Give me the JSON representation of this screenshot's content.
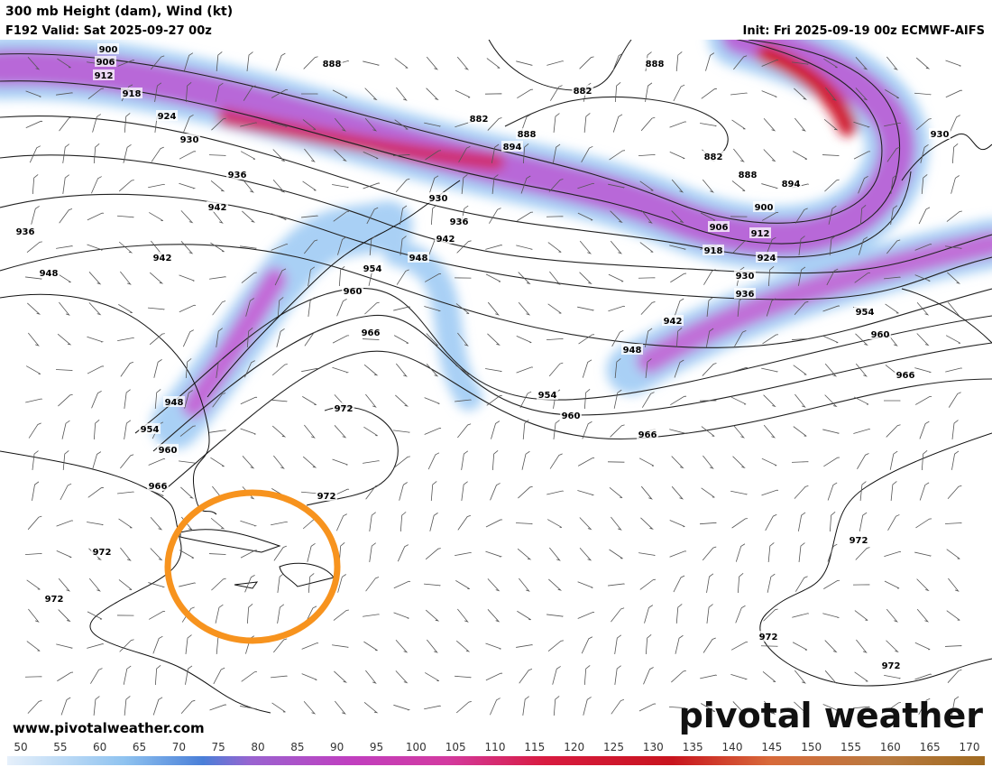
{
  "header": {
    "title": "300 mb Height (dam), Wind (kt)",
    "valid": "F192 Valid: Sat 2025-09-27 00z",
    "init": "Init: Fri 2025-09-19 00z ECMWF-AIFS"
  },
  "map": {
    "contour_labels": [
      900,
      906,
      912,
      918,
      924,
      930,
      936,
      942,
      936,
      942,
      948,
      888,
      882,
      888,
      894,
      930,
      936,
      942,
      948,
      954,
      960,
      966,
      888,
      882,
      882,
      888,
      894,
      900,
      906,
      912,
      918,
      924,
      930,
      936,
      942,
      948,
      954,
      960,
      966,
      954,
      960,
      966,
      930,
      972,
      972,
      948,
      954,
      960,
      966,
      972,
      972,
      972,
      972,
      972
    ]
  },
  "footer": {
    "website": "www.pivotalweather.com",
    "logo": "pivotal weather"
  },
  "colorbar": {
    "ticks": [
      50,
      55,
      60,
      65,
      70,
      75,
      80,
      85,
      90,
      95,
      100,
      105,
      110,
      115,
      120,
      125,
      130,
      135,
      140,
      145,
      150,
      155,
      160,
      165,
      170
    ]
  }
}
